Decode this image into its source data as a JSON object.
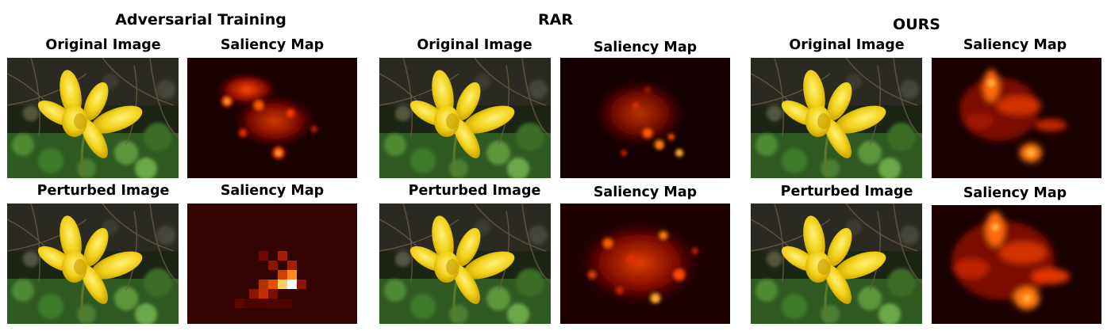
{
  "groups": [
    {
      "title": "Adversarial Training",
      "rows": [
        {
          "image_label": "Original Image",
          "map_label": "Saliency Map"
        },
        {
          "image_label": "Perturbed Image",
          "map_label": "Saliency Map"
        }
      ]
    },
    {
      "title": "RAR",
      "rows": [
        {
          "image_label": "Original Image",
          "map_label": "Saliency Map"
        },
        {
          "image_label": "Perturbed Image",
          "map_label": "Saliency Map"
        }
      ]
    },
    {
      "title": "OURS",
      "rows": [
        {
          "image_label": "Original Image",
          "map_label": "Saliency Map"
        },
        {
          "image_label": "Perturbed Image",
          "map_label": "Saliency Map"
        }
      ]
    }
  ],
  "colors": {
    "background": "#ffffff",
    "flower_yellow": "#f2d21a",
    "foliage_green": "#3f6a2a",
    "saliency_dark": "#1a0000",
    "saliency_hot": "#ff3a00"
  }
}
